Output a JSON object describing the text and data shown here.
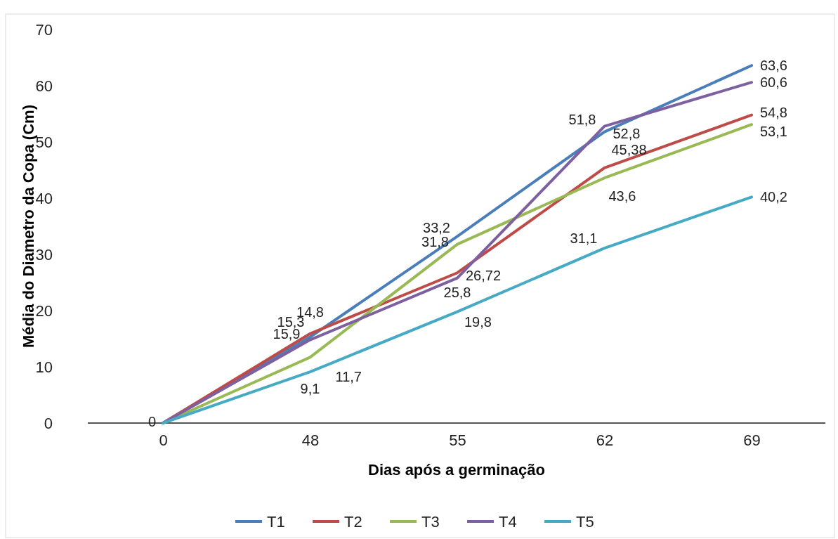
{
  "chart_data": {
    "type": "line",
    "xlabel": "Dias após a germinação",
    "ylabel": "Média do Diametro da Copa (Cm)",
    "categories": [
      "0",
      "48",
      "55",
      "62",
      "69"
    ],
    "ylim": [
      0,
      70
    ],
    "yticks": [
      0,
      10,
      20,
      30,
      40,
      50,
      60,
      70
    ],
    "grid": false,
    "legend": "bottom",
    "marker": "none",
    "line_style": "solid",
    "series": [
      {
        "name": "T1",
        "color": "#4a7ebb",
        "values": [
          0,
          15.3,
          33.2,
          51.8,
          63.6
        ],
        "value_labels": [
          null,
          "15,3",
          "33,2",
          "51,8",
          "63,6"
        ]
      },
      {
        "name": "T2",
        "color": "#be4b48",
        "values": [
          0,
          15.9,
          26.72,
          45.38,
          54.8
        ],
        "value_labels": [
          null,
          "15,9",
          "26,72",
          "45,38",
          "54,8"
        ]
      },
      {
        "name": "T3",
        "color": "#98b954",
        "values": [
          0,
          11.7,
          31.8,
          43.6,
          53.1
        ],
        "value_labels": [
          null,
          "11,7",
          "31,8",
          "43,6",
          "53,1"
        ]
      },
      {
        "name": "T4",
        "color": "#7d60a0",
        "values": [
          0,
          14.8,
          25.8,
          52.8,
          60.6
        ],
        "value_labels": [
          null,
          "14,8",
          "25,8",
          "52,8",
          "60,6"
        ]
      },
      {
        "name": "T5",
        "color": "#46aac5",
        "values": [
          0,
          9.1,
          19.8,
          31.1,
          40.2
        ],
        "value_labels": [
          "0",
          "9,1",
          "19,8",
          "31,1",
          "40,2"
        ]
      }
    ]
  }
}
